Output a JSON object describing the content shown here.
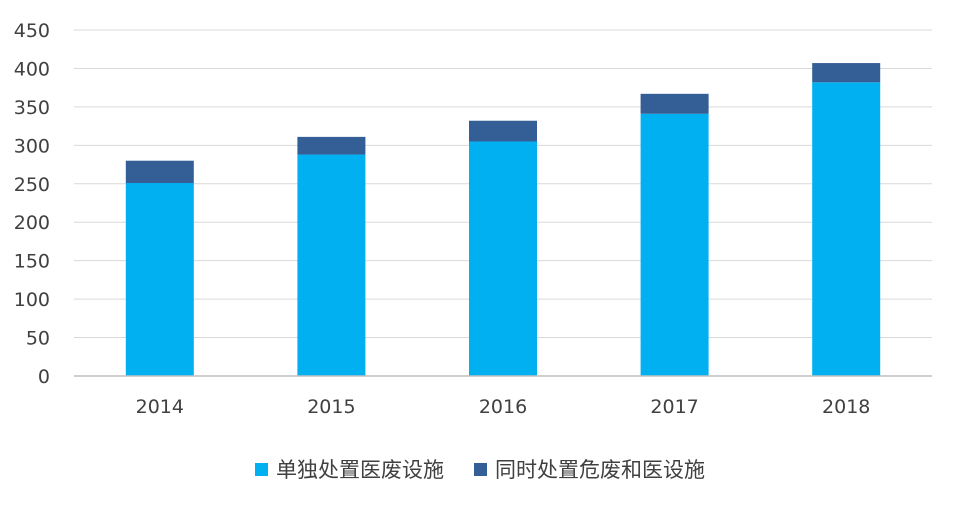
{
  "chart_data": {
    "type": "bar",
    "stacked": true,
    "categories": [
      "2014",
      "2015",
      "2016",
      "2017",
      "2018"
    ],
    "series": [
      {
        "name": "单独处置医废设施",
        "values": [
          251,
          288,
          305,
          341,
          382
        ],
        "color": "#00b0f0"
      },
      {
        "name": "同时处置危废和医设施",
        "values": [
          29,
          23,
          27,
          26,
          25
        ],
        "color": "#345e96"
      }
    ],
    "ylim": [
      0,
      450
    ],
    "yticks": [
      0,
      50,
      100,
      150,
      200,
      250,
      300,
      350,
      400,
      450
    ],
    "grid": true,
    "legend_position": "bottom",
    "title": "",
    "xlabel": "",
    "ylabel": ""
  }
}
